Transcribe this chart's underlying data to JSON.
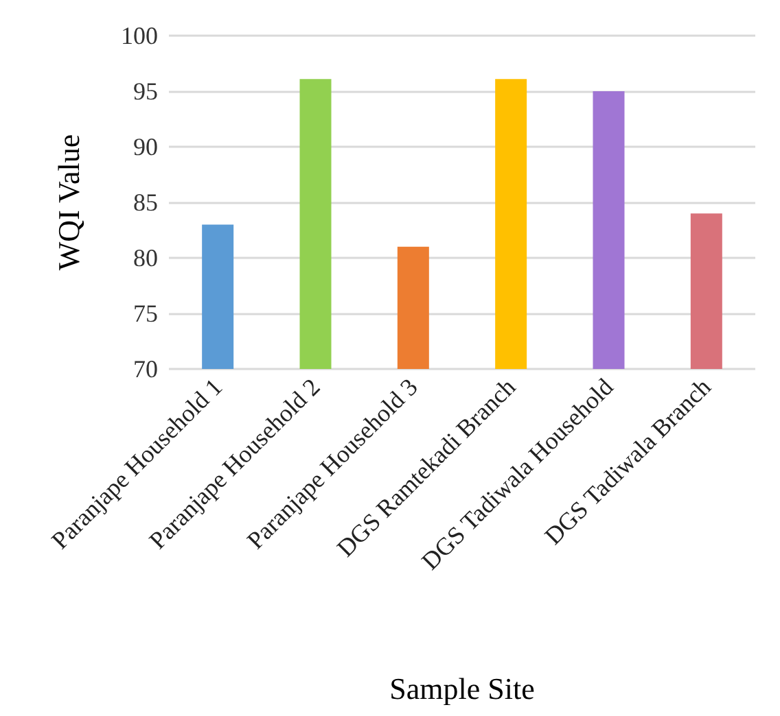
{
  "chart_data": {
    "type": "bar",
    "xlabel": "Sample Site",
    "ylabel": "WQI Value",
    "categories": [
      "Paranjape Household 1",
      "Paranjape Household 2",
      "Paranjape Household 3",
      "DGS Ramtekadi Branch",
      "DGS Tadiwala Household",
      "DGS Tadiwala Branch"
    ],
    "values": [
      83,
      96.1,
      81,
      96.1,
      95,
      84
    ],
    "colors": [
      "#5b9bd5",
      "#92d050",
      "#ed7d31",
      "#ffc000",
      "#a076d4",
      "#d9727a"
    ],
    "ylim": [
      70,
      100
    ],
    "yticks": [
      70,
      75,
      80,
      85,
      90,
      95,
      100
    ],
    "grid": "y"
  }
}
